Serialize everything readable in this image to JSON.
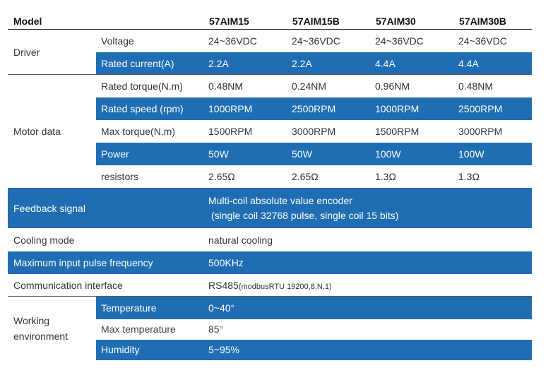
{
  "header": {
    "model": "Model",
    "models": [
      "57AIM15",
      "57AIM15B",
      "57AIM30",
      "57AIM30B"
    ]
  },
  "driver": {
    "group": "Driver",
    "rows": [
      {
        "label": "Voltage",
        "values": [
          "24~36VDC",
          "24~36VDC",
          "24~36VDC",
          "24~36VDC"
        ]
      },
      {
        "label": "Rated current(A)",
        "values": [
          "2.2A",
          "2.2A",
          "4.4A",
          "4.4A"
        ]
      }
    ]
  },
  "motor": {
    "group": "Motor data",
    "rows": [
      {
        "label": "Rated torque(N.m)",
        "values": [
          "0.48NM",
          "0.24NM",
          "0.96NM",
          "0.48NM"
        ]
      },
      {
        "label": "Rated speed (rpm)",
        "values": [
          "1000RPM",
          "2500RPM",
          "1000RPM",
          "2500RPM"
        ]
      },
      {
        "label": "Max torque(N.m)",
        "values": [
          "1500RPM",
          "3000RPM",
          "1500RPM",
          "3000RPM"
        ]
      },
      {
        "label": "Power",
        "values": [
          "50W",
          "50W",
          "100W",
          "100W"
        ]
      },
      {
        "label": "resistors",
        "values": [
          "2.65Ω",
          "2.65Ω",
          "1.3Ω",
          "1.3Ω"
        ]
      }
    ]
  },
  "feedback": {
    "label": "Feedback signal",
    "line1": "Multi-coil absolute value encoder",
    "line2": "(single coil 32768 pulse, single coil 15 bits)"
  },
  "cooling": {
    "label": "Cooling mode",
    "value": "natural cooling"
  },
  "pulse": {
    "label": "Maximum input pulse frequency",
    "value": "500KHz"
  },
  "comm": {
    "label": "Communication interface",
    "value": "RS485",
    "detail": "(modbusRTU  19200,8,N,1)"
  },
  "env": {
    "line1": "Working",
    "line2": "environment",
    "rows": [
      {
        "label": "Temperature",
        "value": "0~40°"
      },
      {
        "label": "Max temperature",
        "value": "85°"
      },
      {
        "label": "Humidity",
        "value": "5~95%"
      }
    ]
  },
  "colors": {
    "band": "#1f6eb4",
    "band_text": "#ffffff",
    "text": "#333333"
  }
}
